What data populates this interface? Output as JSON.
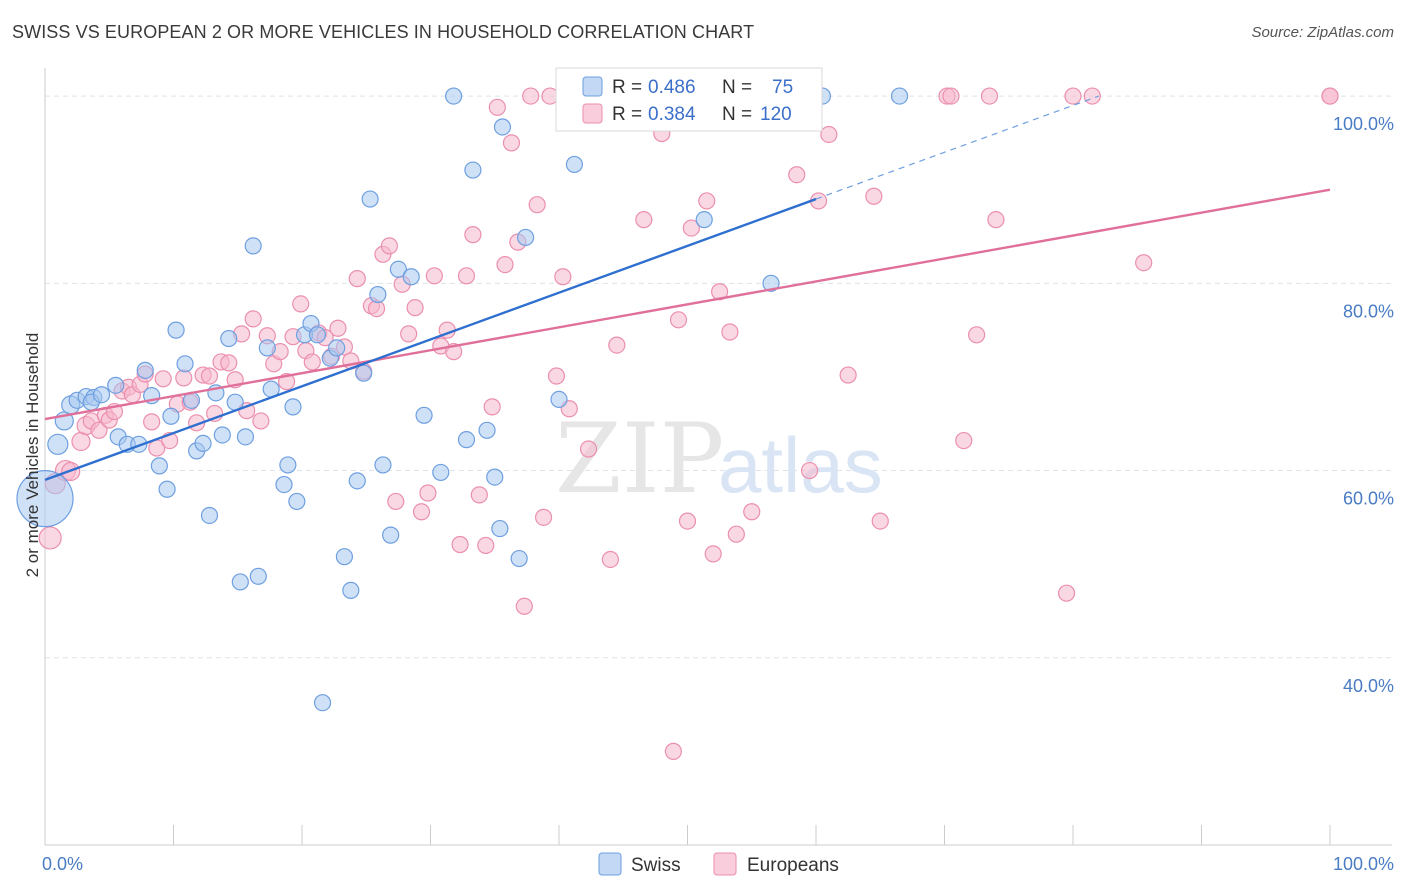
{
  "title": "SWISS VS EUROPEAN 2 OR MORE VEHICLES IN HOUSEHOLD CORRELATION CHART",
  "source": "Source: ZipAtlas.com",
  "watermark": {
    "zip": "ZIP",
    "atlas": "atlas"
  },
  "colors": {
    "swiss_fill": "#a8c8f0",
    "swiss_stroke": "#6e9fe0",
    "swiss_line": "#2e6fcf",
    "europeans_fill": "#f6b8cc",
    "europeans_stroke": "#eb8fae",
    "europeans_line": "#e0709a",
    "grid": "#dde3ea",
    "tick_label": "#4a7cc4"
  },
  "legend": {
    "swiss": {
      "r_label": "R = ",
      "r_value": "0.486",
      "n_label": "N = ",
      "n_value": "75"
    },
    "europeans": {
      "r_label": "R = ",
      "r_value": "0.384",
      "n_label": "N = ",
      "n_value": "120"
    }
  },
  "bottom_legend": [
    "Swiss",
    "Europeans"
  ],
  "chart_data": {
    "type": "scatter",
    "title": "SWISS VS EUROPEAN 2 OR MORE VEHICLES IN HOUSEHOLD CORRELATION CHART",
    "xlabel": "",
    "ylabel": "2 or more Vehicles in Household",
    "xlim": [
      0,
      100
    ],
    "ylim": [
      20,
      103
    ],
    "x_tick_labels": [
      "0.0%",
      "100.0%"
    ],
    "y_ticks": [
      40,
      60,
      80,
      100
    ],
    "y_tick_labels": [
      "40.0%",
      "60.0%",
      "80.0%",
      "100.0%"
    ],
    "grid": true,
    "legend_position": "top-center",
    "series": [
      {
        "name": "Swiss",
        "r": 0.486,
        "n": 75,
        "trend": {
          "x": [
            0,
            60
          ],
          "y": [
            59,
            89
          ],
          "dashed_extension": {
            "x": [
              60,
              82
            ],
            "y": [
              89,
              100
            ]
          }
        },
        "points": [
          [
            0,
            57,
            28
          ],
          [
            1,
            62.8,
            10
          ],
          [
            1.5,
            65.3,
            9
          ],
          [
            2,
            67,
            9
          ],
          [
            2.5,
            67.5,
            8
          ],
          [
            3.2,
            67.9,
            8
          ],
          [
            3.8,
            67.8,
            8
          ],
          [
            3.6,
            67.3,
            8
          ],
          [
            4.4,
            68.1,
            8
          ],
          [
            5.5,
            69.1,
            8
          ],
          [
            5.7,
            63.6,
            8
          ],
          [
            6.4,
            62.8,
            8
          ],
          [
            7.3,
            62.8,
            8
          ],
          [
            7.8,
            70.7,
            8
          ],
          [
            8.3,
            68,
            8
          ],
          [
            8.9,
            60.5,
            8
          ],
          [
            9.5,
            58,
            8
          ],
          [
            9.8,
            65.8,
            8
          ],
          [
            10.2,
            75,
            8
          ],
          [
            10.9,
            71.4,
            8
          ],
          [
            11.4,
            67.5,
            8
          ],
          [
            11.8,
            62.1,
            8
          ],
          [
            12.3,
            62.9,
            8
          ],
          [
            12.8,
            55.2,
            8
          ],
          [
            13.3,
            68.3,
            8
          ],
          [
            13.8,
            63.8,
            8
          ],
          [
            14.3,
            74.1,
            8
          ],
          [
            14.8,
            67.3,
            8
          ],
          [
            15.2,
            48.1,
            8
          ],
          [
            15.6,
            63.6,
            8
          ],
          [
            16.2,
            84,
            8
          ],
          [
            16.6,
            48.7,
            8
          ],
          [
            17.3,
            73.1,
            8
          ],
          [
            17.6,
            68.7,
            8
          ],
          [
            18.6,
            58.5,
            8
          ],
          [
            18.9,
            60.6,
            8
          ],
          [
            19.3,
            66.8,
            8
          ],
          [
            19.6,
            56.7,
            8
          ],
          [
            20.2,
            74.5,
            8
          ],
          [
            20.7,
            75.7,
            8
          ],
          [
            21.2,
            74.5,
            8
          ],
          [
            21.6,
            35.2,
            8
          ],
          [
            22.2,
            72,
            8
          ],
          [
            22.7,
            73.1,
            8
          ],
          [
            23.3,
            50.8,
            8
          ],
          [
            23.8,
            47.2,
            8
          ],
          [
            24.3,
            58.9,
            8
          ],
          [
            24.8,
            70.4,
            8
          ],
          [
            25.3,
            89,
            8
          ],
          [
            25.9,
            78.8,
            8
          ],
          [
            26.3,
            60.6,
            8
          ],
          [
            26.9,
            53.1,
            8
          ],
          [
            27.5,
            81.5,
            8
          ],
          [
            28.5,
            80.7,
            8
          ],
          [
            29.5,
            65.9,
            8
          ],
          [
            30.8,
            59.8,
            8
          ],
          [
            31.8,
            100,
            8
          ],
          [
            32.8,
            63.3,
            8
          ],
          [
            33.3,
            92.1,
            8
          ],
          [
            34.4,
            64.3,
            8
          ],
          [
            35,
            59.3,
            8
          ],
          [
            35.4,
            53.8,
            8
          ],
          [
            35.6,
            96.7,
            8
          ],
          [
            36.9,
            50.6,
            8
          ],
          [
            37.4,
            84.9,
            8
          ],
          [
            40,
            67.6,
            8
          ],
          [
            41.2,
            92.7,
            8
          ],
          [
            43.2,
            100,
            8
          ],
          [
            47.1,
            98,
            8
          ],
          [
            47.5,
            100,
            8
          ],
          [
            51.3,
            86.8,
            8
          ],
          [
            56.5,
            80,
            8
          ],
          [
            58.1,
            100,
            8
          ],
          [
            60.5,
            100,
            8
          ],
          [
            66.5,
            100,
            8
          ]
        ]
      },
      {
        "name": "Europeans",
        "r": 0.384,
        "n": 120,
        "trend": {
          "x": [
            0,
            100
          ],
          "y": [
            65.5,
            90
          ]
        },
        "points": [
          [
            0.4,
            52.8,
            11
          ],
          [
            0.8,
            58.6,
            10
          ],
          [
            1.6,
            60,
            10
          ],
          [
            2,
            59.9,
            9
          ],
          [
            2.8,
            63.1,
            9
          ],
          [
            3.2,
            64.8,
            9
          ],
          [
            3.6,
            65.3,
            8
          ],
          [
            4.2,
            64.3,
            8
          ],
          [
            4.7,
            65.9,
            8
          ],
          [
            5,
            65.4,
            8
          ],
          [
            5.4,
            66.3,
            8
          ],
          [
            6,
            68.5,
            8
          ],
          [
            6.5,
            68.9,
            8
          ],
          [
            6.8,
            68.1,
            8
          ],
          [
            7.4,
            69.2,
            8
          ],
          [
            7.8,
            70.3,
            8
          ],
          [
            8.3,
            65.2,
            8
          ],
          [
            8.7,
            62.4,
            8
          ],
          [
            9.2,
            69.8,
            8
          ],
          [
            9.7,
            63.2,
            8
          ],
          [
            10.3,
            67.1,
            8
          ],
          [
            10.8,
            69.9,
            8
          ],
          [
            11.3,
            67.3,
            8
          ],
          [
            11.8,
            65.1,
            8
          ],
          [
            12.3,
            70.2,
            8
          ],
          [
            12.8,
            70.1,
            8
          ],
          [
            13.2,
            66.1,
            8
          ],
          [
            13.7,
            71.6,
            8
          ],
          [
            14.3,
            71.5,
            8
          ],
          [
            14.8,
            69.7,
            8
          ],
          [
            15.3,
            74.6,
            8
          ],
          [
            15.7,
            66.4,
            8
          ],
          [
            16.2,
            76.2,
            8
          ],
          [
            16.8,
            65.3,
            8
          ],
          [
            17.3,
            74.4,
            8
          ],
          [
            17.8,
            71.4,
            8
          ],
          [
            18.3,
            72.7,
            8
          ],
          [
            18.8,
            69.5,
            8
          ],
          [
            19.3,
            74.3,
            8
          ],
          [
            19.9,
            77.8,
            8
          ],
          [
            20.3,
            72.8,
            8
          ],
          [
            20.8,
            71.6,
            8
          ],
          [
            21.3,
            74.7,
            8
          ],
          [
            21.8,
            74.2,
            8
          ],
          [
            22.3,
            72.2,
            8
          ],
          [
            22.8,
            75.2,
            8
          ],
          [
            23.3,
            73.2,
            8
          ],
          [
            23.8,
            71.7,
            8
          ],
          [
            24.3,
            80.5,
            8
          ],
          [
            24.8,
            70.6,
            8
          ],
          [
            25.4,
            77.6,
            8
          ],
          [
            25.8,
            77.3,
            8
          ],
          [
            26.3,
            83.1,
            8
          ],
          [
            26.8,
            84,
            8
          ],
          [
            27.3,
            56.7,
            8
          ],
          [
            27.8,
            79.9,
            8
          ],
          [
            28.3,
            74.6,
            8
          ],
          [
            28.8,
            77.4,
            8
          ],
          [
            29.3,
            55.6,
            8
          ],
          [
            29.8,
            57.6,
            8
          ],
          [
            30.3,
            80.8,
            8
          ],
          [
            30.8,
            73.3,
            8
          ],
          [
            31.3,
            75,
            8
          ],
          [
            31.8,
            72.7,
            8
          ],
          [
            32.3,
            52.1,
            8
          ],
          [
            32.8,
            80.8,
            8
          ],
          [
            33.3,
            85.2,
            8
          ],
          [
            33.8,
            57.4,
            8
          ],
          [
            34.3,
            52,
            8
          ],
          [
            34.8,
            66.8,
            8
          ],
          [
            35.2,
            98.8,
            8
          ],
          [
            35.8,
            82,
            8
          ],
          [
            36.3,
            95,
            8
          ],
          [
            36.8,
            84.4,
            8
          ],
          [
            37.3,
            45.5,
            8
          ],
          [
            37.8,
            100,
            8
          ],
          [
            38.3,
            88.4,
            8
          ],
          [
            38.8,
            55,
            8
          ],
          [
            39.3,
            100,
            8
          ],
          [
            39.8,
            70.1,
            8
          ],
          [
            40.3,
            80.7,
            8
          ],
          [
            40.8,
            66.6,
            8
          ],
          [
            41.4,
            100,
            8
          ],
          [
            42.3,
            62.3,
            8
          ],
          [
            43,
            98,
            8
          ],
          [
            44,
            50.5,
            8
          ],
          [
            44.5,
            73.4,
            8
          ],
          [
            45.3,
            100,
            8
          ],
          [
            46.6,
            86.8,
            8
          ],
          [
            48,
            96,
            8
          ],
          [
            48.3,
            98.2,
            8
          ],
          [
            48.9,
            30,
            8
          ],
          [
            49.3,
            76.1,
            8
          ],
          [
            50,
            54.6,
            8
          ],
          [
            50.3,
            85.9,
            8
          ],
          [
            51.5,
            88.8,
            8
          ],
          [
            52,
            51.1,
            8
          ],
          [
            52.5,
            79.1,
            8
          ],
          [
            53.3,
            74.8,
            8
          ],
          [
            53.8,
            53.2,
            8
          ],
          [
            55,
            55.6,
            8
          ],
          [
            58.5,
            91.6,
            8
          ],
          [
            59.5,
            60,
            8
          ],
          [
            60.2,
            88.8,
            8
          ],
          [
            61,
            95.9,
            8
          ],
          [
            62.5,
            70.2,
            8
          ],
          [
            64.5,
            89.3,
            8
          ],
          [
            65,
            54.6,
            8
          ],
          [
            70.2,
            100,
            8
          ],
          [
            70.5,
            100,
            8
          ],
          [
            71.5,
            63.2,
            8
          ],
          [
            72.5,
            74.5,
            8
          ],
          [
            73.5,
            100,
            8
          ],
          [
            74,
            86.8,
            8
          ],
          [
            79.5,
            46.9,
            8
          ],
          [
            80,
            100,
            8
          ],
          [
            81.5,
            100,
            8
          ],
          [
            85.5,
            82.2,
            8
          ],
          [
            100,
            100,
            8
          ],
          [
            100,
            100,
            8
          ]
        ]
      }
    ]
  }
}
